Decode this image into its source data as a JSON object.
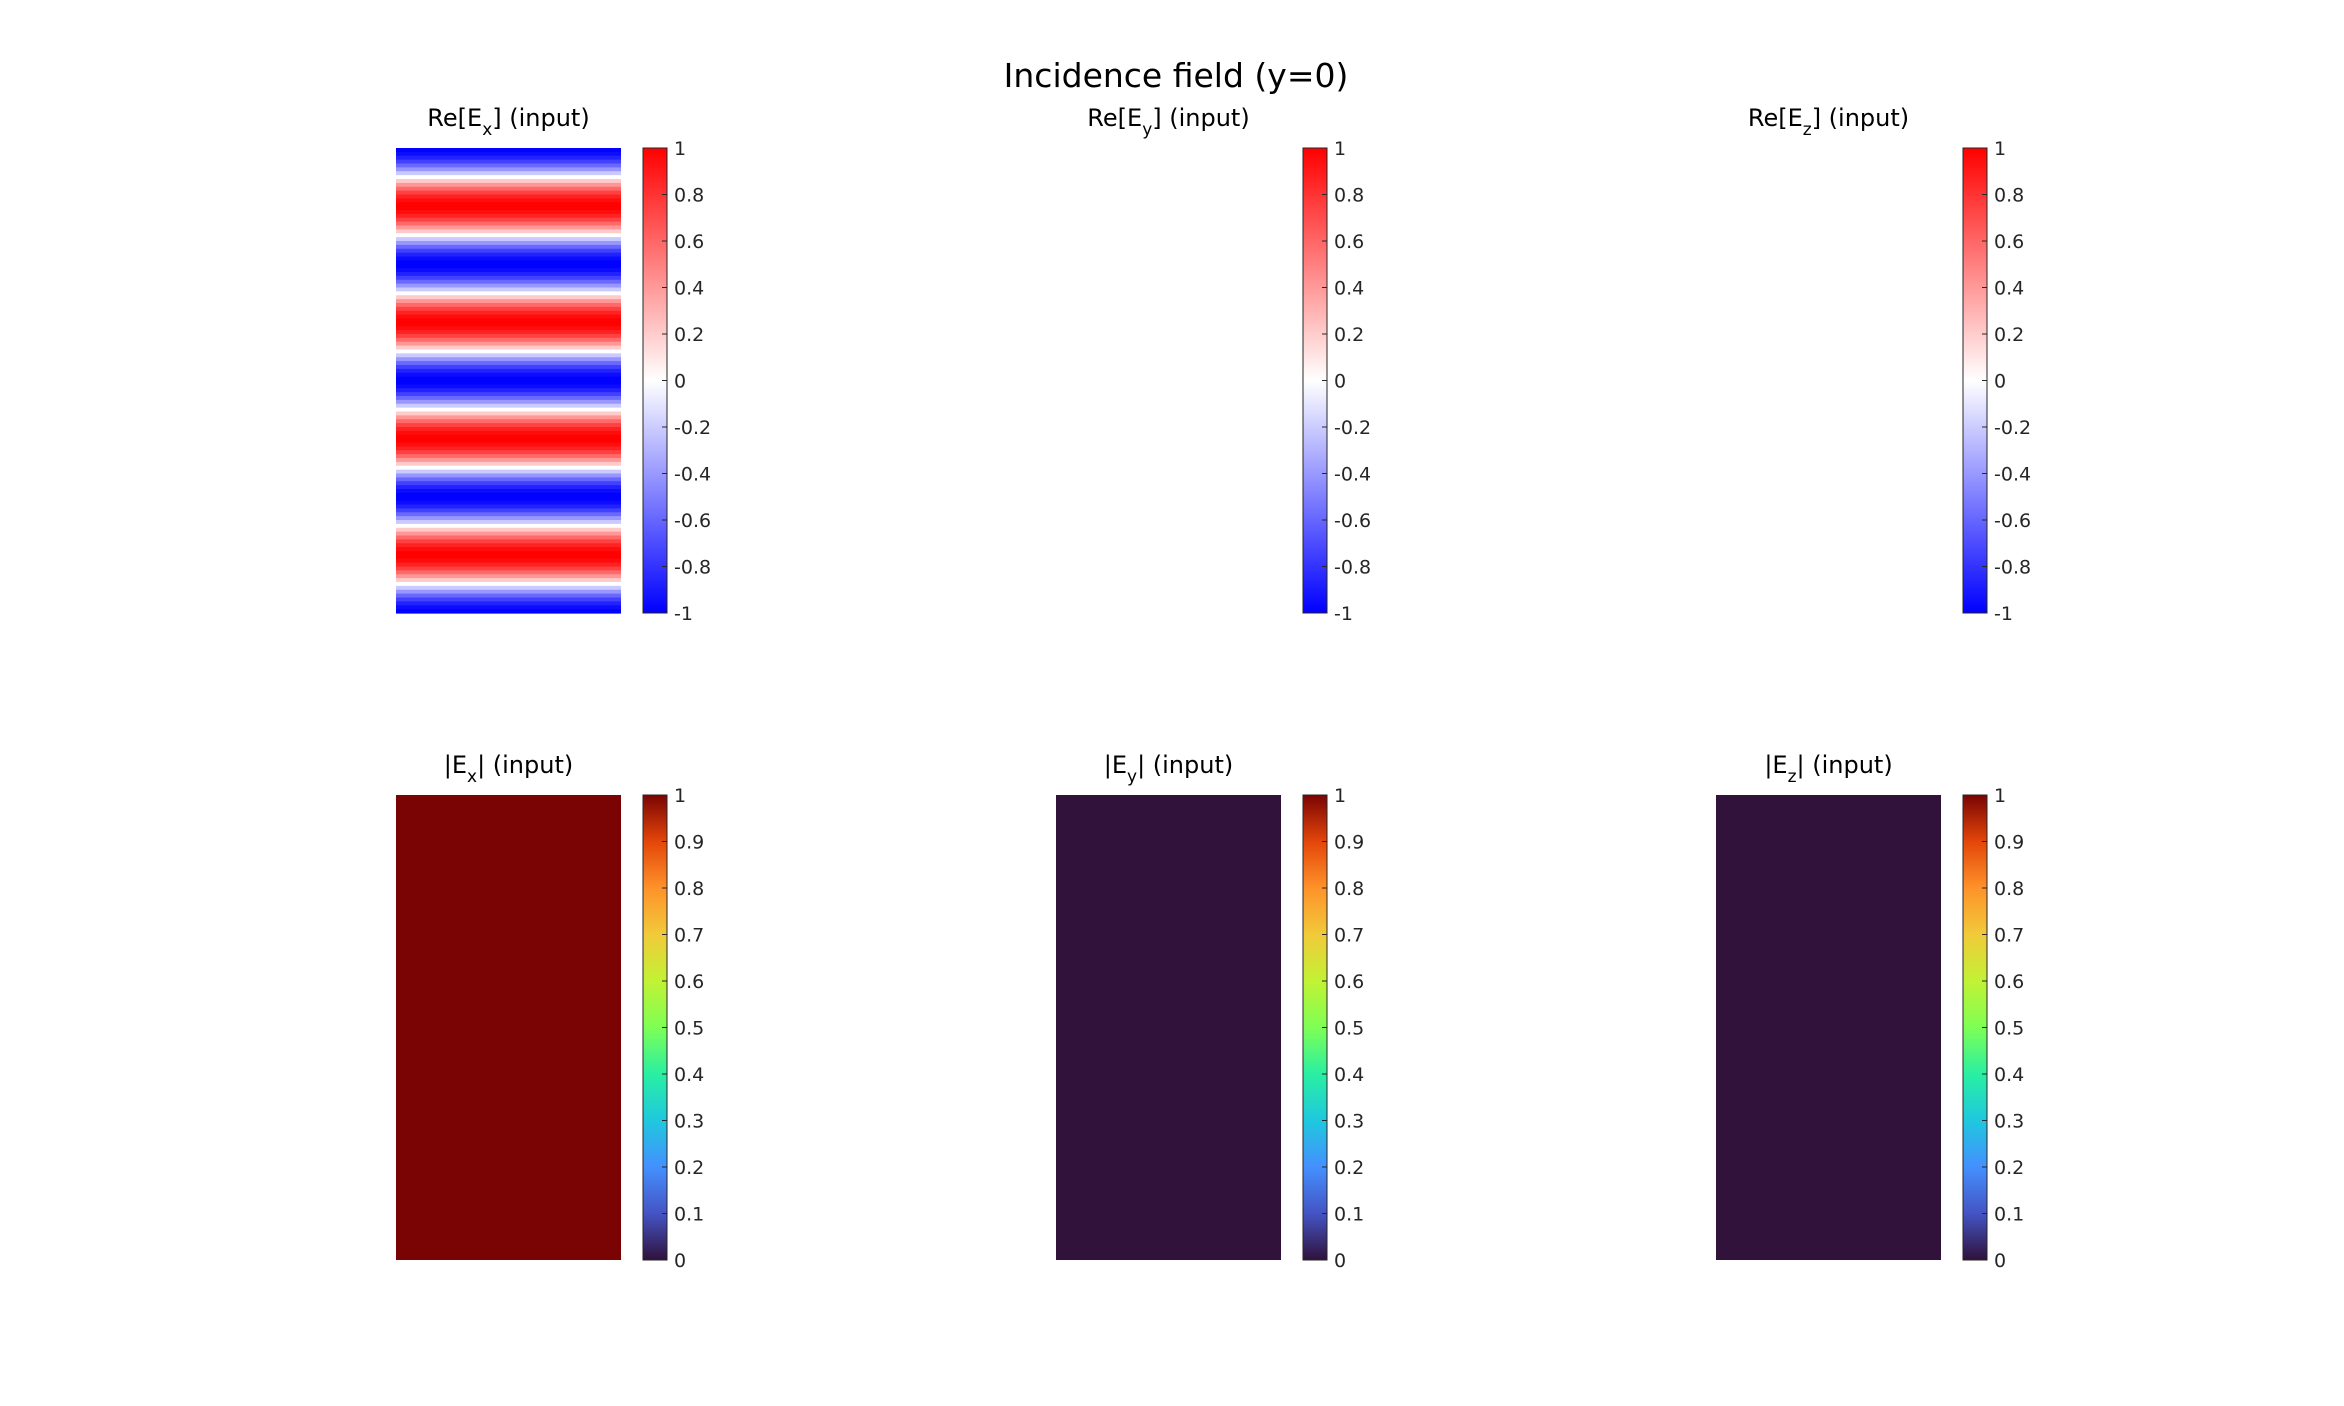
{
  "figure": {
    "title": "Incidence field (y=0)"
  },
  "chart_data": [
    {
      "type": "heatmap",
      "title": "Re[E_x] (input)",
      "title_parts": {
        "pre": "Re[E",
        "sub": "x",
        "post": "] (input)"
      },
      "colormap": "blue-white-red",
      "colorbar_range": [
        -1,
        1
      ],
      "colorbar_ticks": [
        "1",
        "0.8",
        "0.6",
        "0.4",
        "0.2",
        "0",
        "-0.2",
        "-0.4",
        "-0.6",
        "-0.8",
        "-1"
      ],
      "field": "cosine-stripes",
      "rows_top_to_bottom": [
        -1,
        1,
        -1,
        1,
        -1,
        1,
        -1,
        1,
        -1
      ],
      "shown": true
    },
    {
      "type": "heatmap",
      "title": "Re[E_y] (input)",
      "title_parts": {
        "pre": "Re[E",
        "sub": "y",
        "post": "] (input)"
      },
      "colormap": "blue-white-red",
      "colorbar_range": [
        -1,
        1
      ],
      "colorbar_ticks": [
        "1",
        "0.8",
        "0.6",
        "0.4",
        "0.2",
        "0",
        "-0.2",
        "-0.4",
        "-0.6",
        "-0.8",
        "-1"
      ],
      "field": "uniform",
      "value": 0,
      "shown": false
    },
    {
      "type": "heatmap",
      "title": "Re[E_z] (input)",
      "title_parts": {
        "pre": "Re[E",
        "sub": "z",
        "post": "] (input)"
      },
      "colormap": "blue-white-red",
      "colorbar_range": [
        -1,
        1
      ],
      "colorbar_ticks": [
        "1",
        "0.8",
        "0.6",
        "0.4",
        "0.2",
        "0",
        "-0.2",
        "-0.4",
        "-0.6",
        "-0.8",
        "-1"
      ],
      "field": "uniform",
      "value": 0,
      "shown": false
    },
    {
      "type": "heatmap",
      "title": "|E_x| (input)",
      "title_parts": {
        "pre": "|E",
        "sub": "x",
        "post": "| (input)"
      },
      "colormap": "turbo",
      "colorbar_range": [
        0,
        1
      ],
      "colorbar_ticks": [
        "1",
        "0.9",
        "0.8",
        "0.7",
        "0.6",
        "0.5",
        "0.4",
        "0.3",
        "0.2",
        "0.1",
        "0"
      ],
      "field": "uniform",
      "value": 1,
      "color": "#7a0403",
      "shown": true
    },
    {
      "type": "heatmap",
      "title": "|E_y| (input)",
      "title_parts": {
        "pre": "|E",
        "sub": "y",
        "post": "| (input)"
      },
      "colormap": "turbo",
      "colorbar_range": [
        0,
        1
      ],
      "colorbar_ticks": [
        "1",
        "0.9",
        "0.8",
        "0.7",
        "0.6",
        "0.5",
        "0.4",
        "0.3",
        "0.2",
        "0.1",
        "0"
      ],
      "field": "uniform",
      "value": 0,
      "color": "#30123b",
      "shown": true
    },
    {
      "type": "heatmap",
      "title": "|E_z| (input)",
      "title_parts": {
        "pre": "|E",
        "sub": "z",
        "post": "| (input)"
      },
      "colormap": "turbo",
      "colorbar_range": [
        0,
        1
      ],
      "colorbar_ticks": [
        "1",
        "0.9",
        "0.8",
        "0.7",
        "0.6",
        "0.5",
        "0.4",
        "0.3",
        "0.2",
        "0.1",
        "0"
      ],
      "field": "uniform",
      "value": 0,
      "color": "#30123b",
      "shown": true
    }
  ]
}
